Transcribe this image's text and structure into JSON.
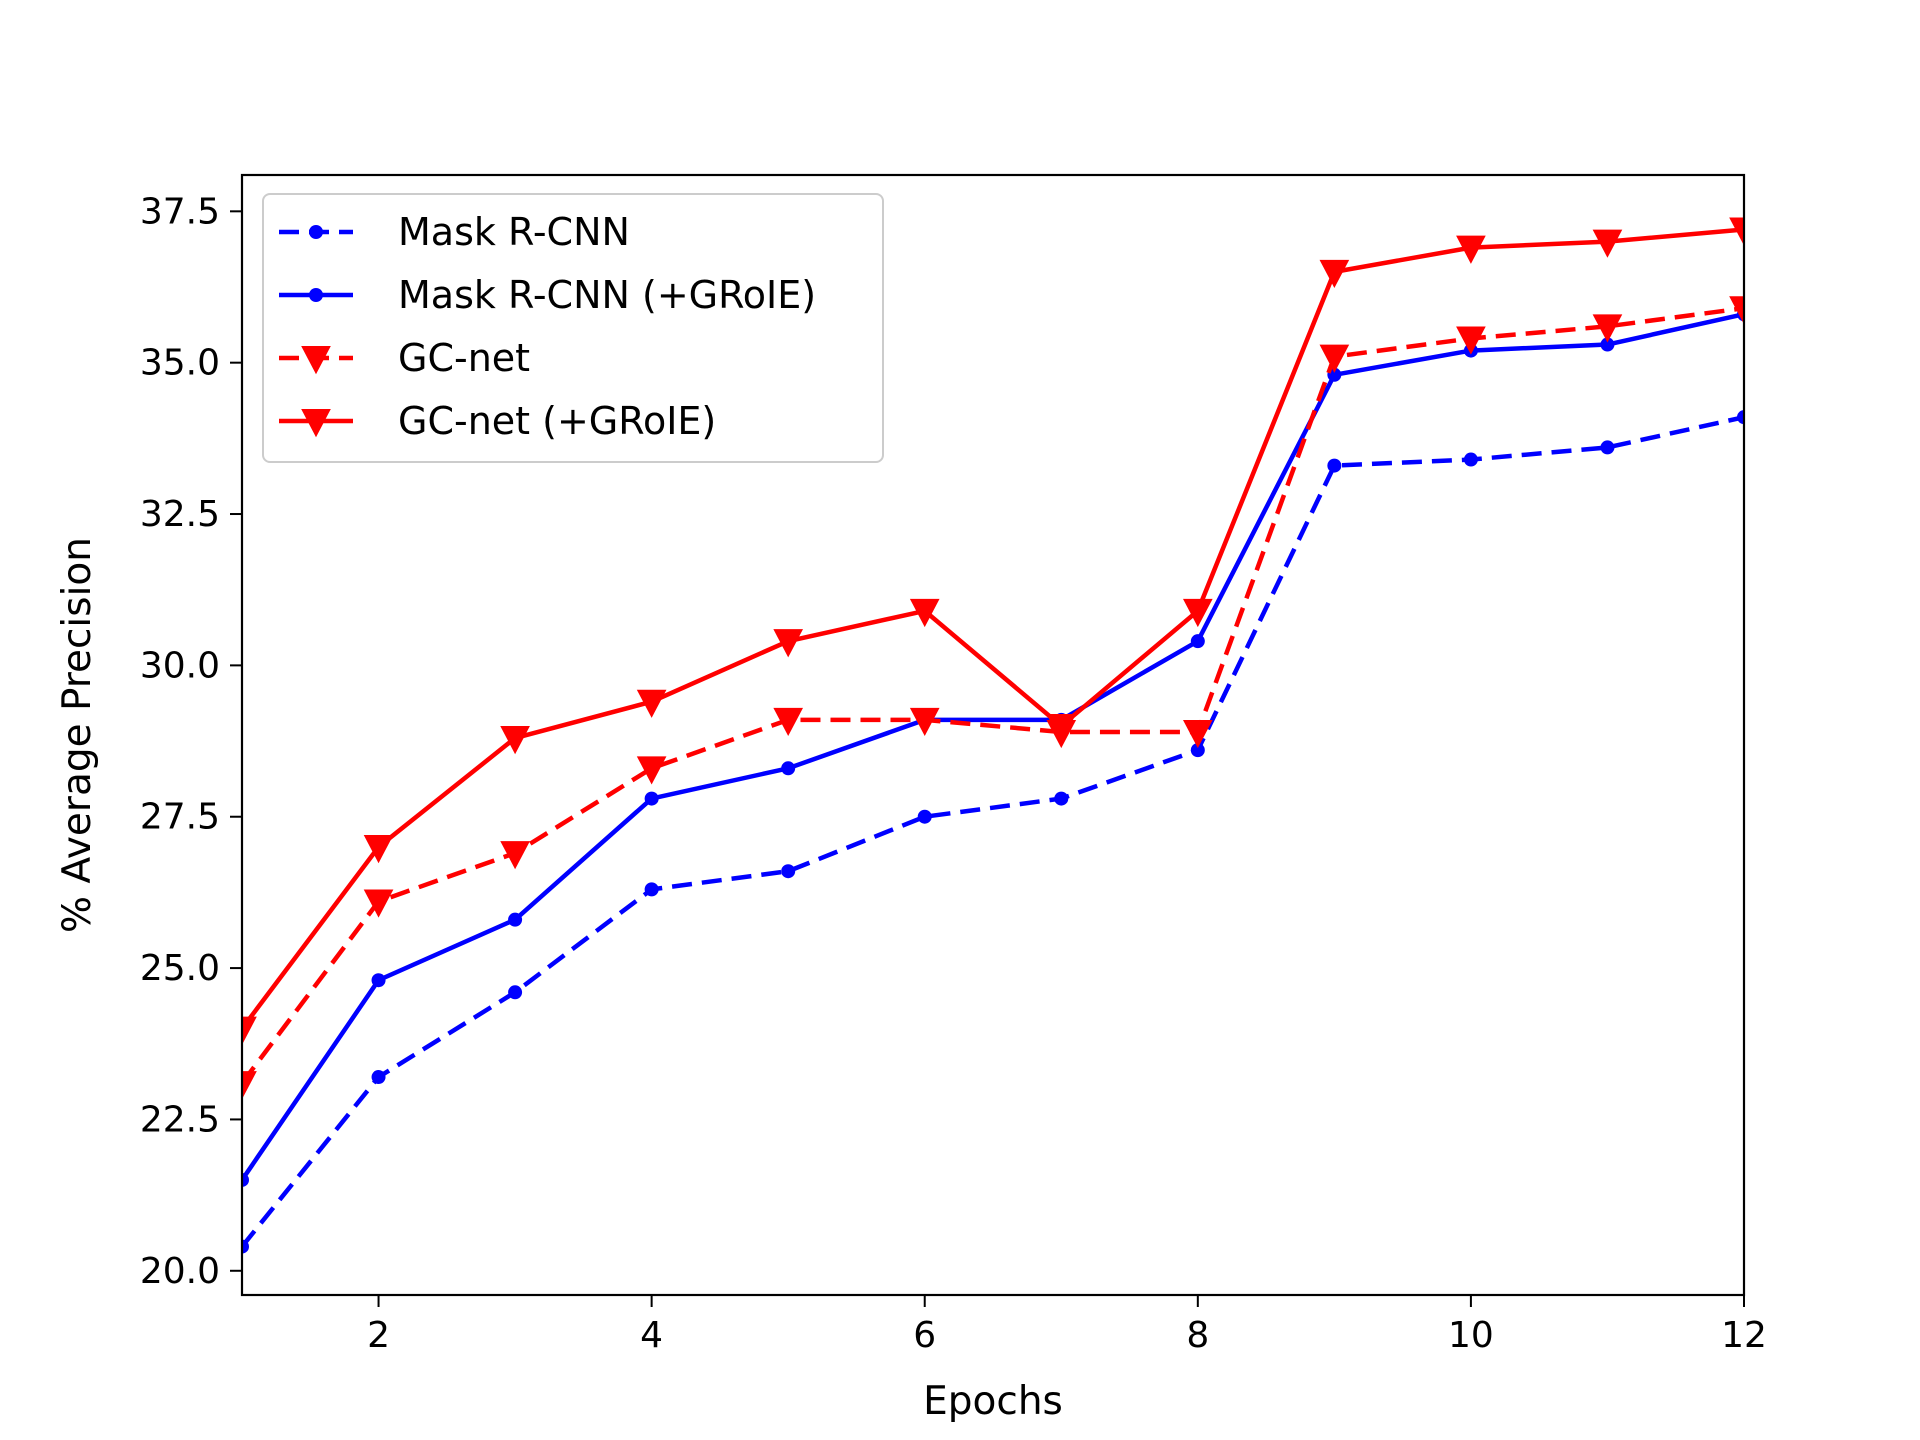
{
  "chart_data": {
    "type": "line",
    "title": "",
    "xlabel": "Epochs",
    "ylabel": "% Average Precision",
    "xlim": [
      1,
      12
    ],
    "ylim": [
      19.6,
      38.1
    ],
    "x_ticks": [
      2,
      4,
      6,
      8,
      10,
      12
    ],
    "y_ticks": [
      20.0,
      22.5,
      25.0,
      27.5,
      30.0,
      32.5,
      35.0,
      37.5
    ],
    "grid": false,
    "legend_position": "top-left",
    "x": [
      1,
      2,
      3,
      4,
      5,
      6,
      7,
      8,
      9,
      10,
      11,
      12
    ],
    "series": [
      {
        "name": "Mask R-CNN",
        "color": "#0000ff",
        "line_style": "dashed",
        "marker": "dot",
        "values": [
          20.4,
          23.2,
          24.6,
          26.3,
          26.6,
          27.5,
          27.8,
          28.6,
          33.3,
          33.4,
          33.6,
          34.1
        ]
      },
      {
        "name": "Mask R-CNN (+GRoIE)",
        "color": "#0000ff",
        "line_style": "solid",
        "marker": "dot",
        "values": [
          21.5,
          24.8,
          25.8,
          27.8,
          28.3,
          29.1,
          29.1,
          30.4,
          34.8,
          35.2,
          35.3,
          35.8
        ]
      },
      {
        "name": "GC-net",
        "color": "#ff0000",
        "line_style": "dashed",
        "marker": "triangle-down",
        "values": [
          23.1,
          26.1,
          26.9,
          28.3,
          29.1,
          29.1,
          28.9,
          28.9,
          35.1,
          35.4,
          35.6,
          35.9
        ]
      },
      {
        "name": "GC-net (+GRoIE)",
        "color": "#ff0000",
        "line_style": "solid",
        "marker": "triangle-down",
        "values": [
          24.0,
          27.0,
          28.8,
          29.4,
          30.4,
          30.9,
          29.0,
          30.9,
          36.5,
          36.9,
          37.0,
          37.2
        ]
      }
    ]
  }
}
